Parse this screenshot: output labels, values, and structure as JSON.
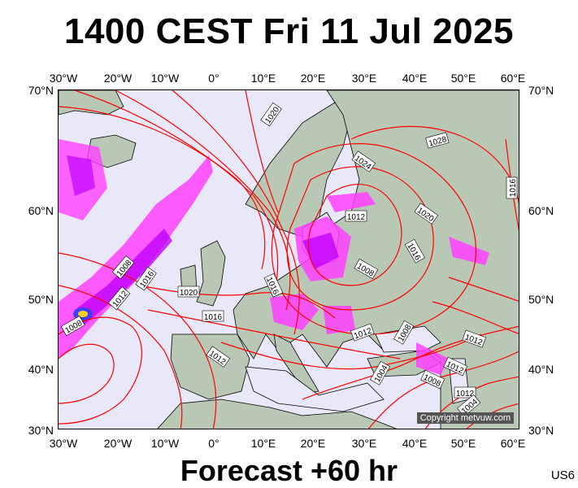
{
  "title": "1400 CEST Fri 11 Jul 2025",
  "footer": "Forecast +60 hr",
  "code": "US6",
  "copyright": "Copyright metvuw.com",
  "lon_labels": [
    "30°W",
    "20°W",
    "10°W",
    "0°",
    "10°E",
    "20°E",
    "30°E",
    "40°E",
    "50°E",
    "60°E"
  ],
  "lat_labels": [
    "70°N",
    "60°N",
    "50°N",
    "40°N",
    "30°N"
  ],
  "isobar_labels": [
    "1020",
    "1028",
    "1024",
    "1016",
    "1020",
    "1012",
    "1016",
    "1008",
    "1016",
    "1008",
    "1012",
    "1016",
    "1020",
    "1016",
    "1012",
    "1008",
    "1012",
    "1008",
    "1012",
    "1012",
    "1004",
    "1008",
    "1012",
    "1004"
  ],
  "colors": {
    "sea": "#e8e8f8",
    "isobar": "#ff0000",
    "rain_light": "#ff40ff",
    "rain_mid": "#c000ff",
    "rain_heavy": "#4040ff"
  }
}
